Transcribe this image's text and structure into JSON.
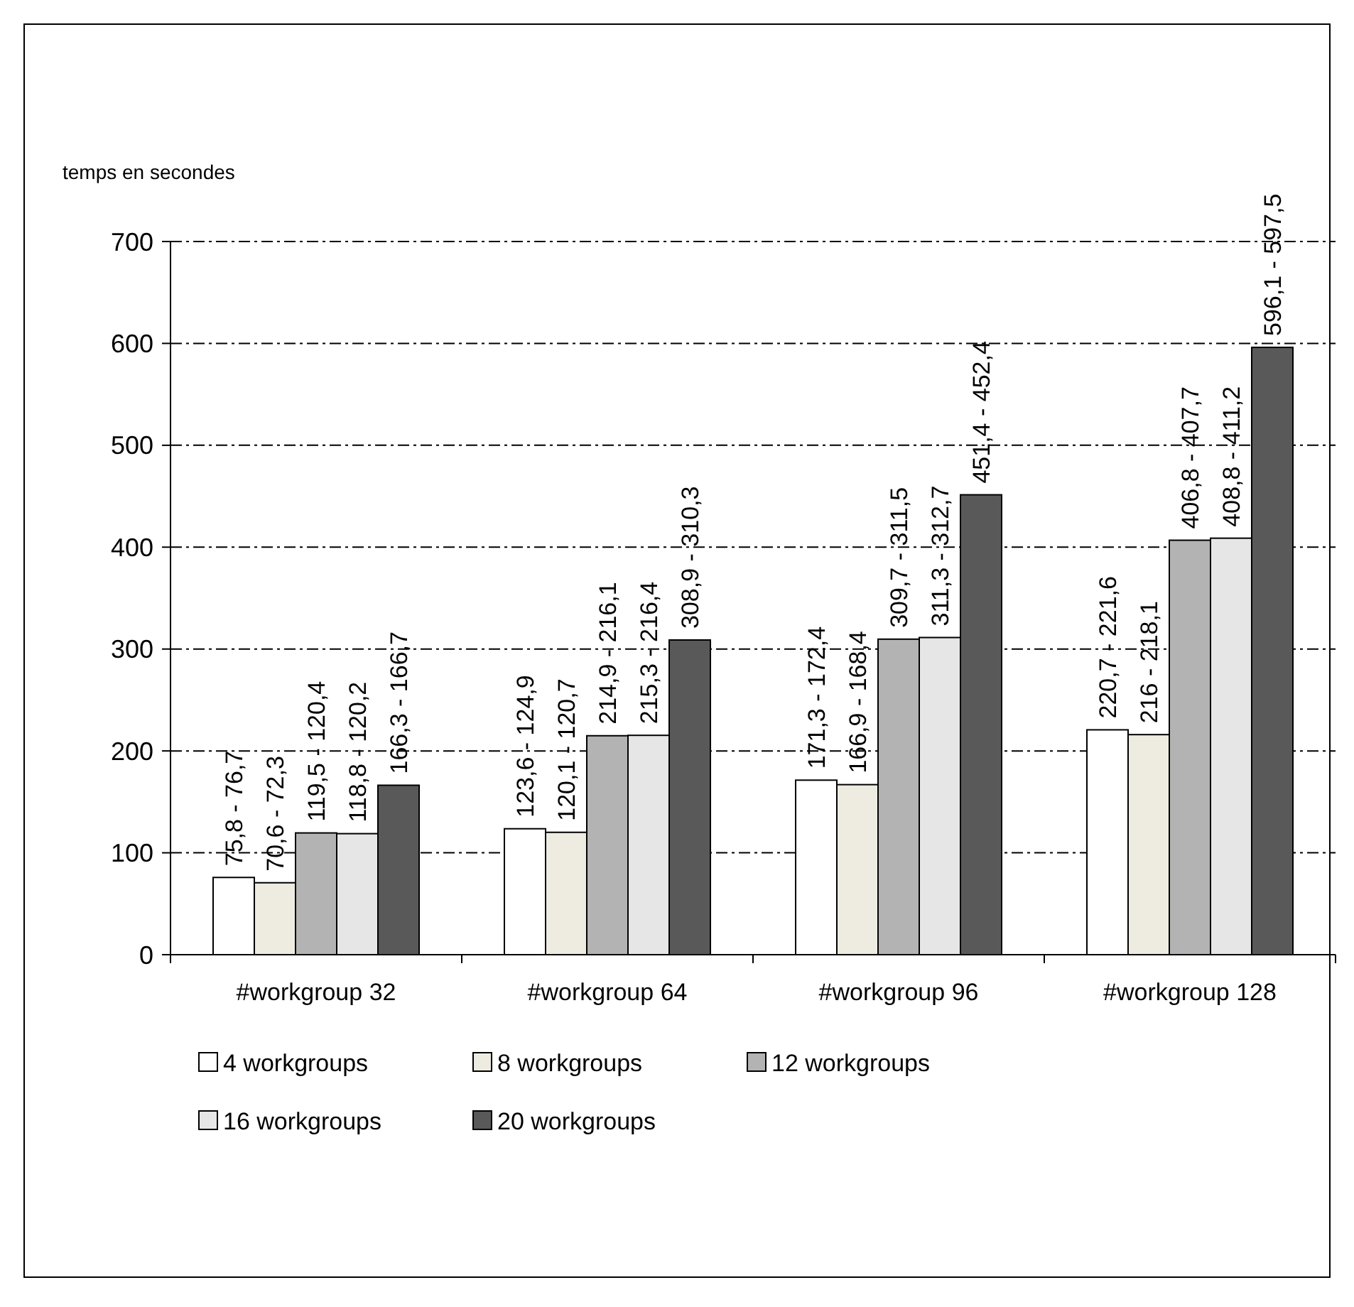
{
  "chart_data": {
    "type": "bar",
    "ylabel": "temps en secondes",
    "categories": [
      "#workgroup 32",
      "#workgroup 64",
      "#workgroup 96",
      "#workgroup 128"
    ],
    "series": [
      {
        "name": "4 workgroups",
        "color": "#ffffff",
        "values": [
          75.8,
          123.6,
          171.3,
          220.7
        ],
        "value_labels": [
          "75,8 - 76,7",
          "123,6 - 124,9",
          "171,3 - 172,4",
          "220,7 - 221,6"
        ]
      },
      {
        "name": "8 workgroups",
        "color": "#eeece1",
        "values": [
          70.6,
          120.1,
          166.9,
          216
        ],
        "value_labels": [
          "70,6 - 72,3",
          "120,1 - 120,7",
          "166,9 - 168,4",
          "216 - 218,1"
        ]
      },
      {
        "name": "12 workgroups",
        "color": "#b3b3b3",
        "values": [
          119.5,
          214.9,
          309.7,
          406.8
        ],
        "value_labels": [
          "119,5 - 120,4",
          "214,9 - 216,1",
          "309,7 - 311,5",
          "406,8 - 407,7"
        ]
      },
      {
        "name": "16 workgroups",
        "color": "#e6e6e6",
        "values": [
          118.8,
          215.3,
          311.3,
          408.8
        ],
        "value_labels": [
          "118,8 - 120,2",
          "215,3 - 216,4",
          "311,3 - 312,7",
          "408,8 - 411,2"
        ]
      },
      {
        "name": "20 workgroups",
        "color": "#595959",
        "values": [
          166.3,
          308.9,
          451.4,
          596.1
        ],
        "value_labels": [
          "166,3 - 166,7",
          "308,9 - 310,3",
          "451,4 - 452,4",
          "596,1 - 597,5"
        ]
      }
    ],
    "ylim": [
      0,
      700
    ],
    "yticks": [
      0,
      100,
      200,
      300,
      400,
      500,
      600,
      700
    ],
    "grid": "y",
    "legend": "bottom"
  }
}
